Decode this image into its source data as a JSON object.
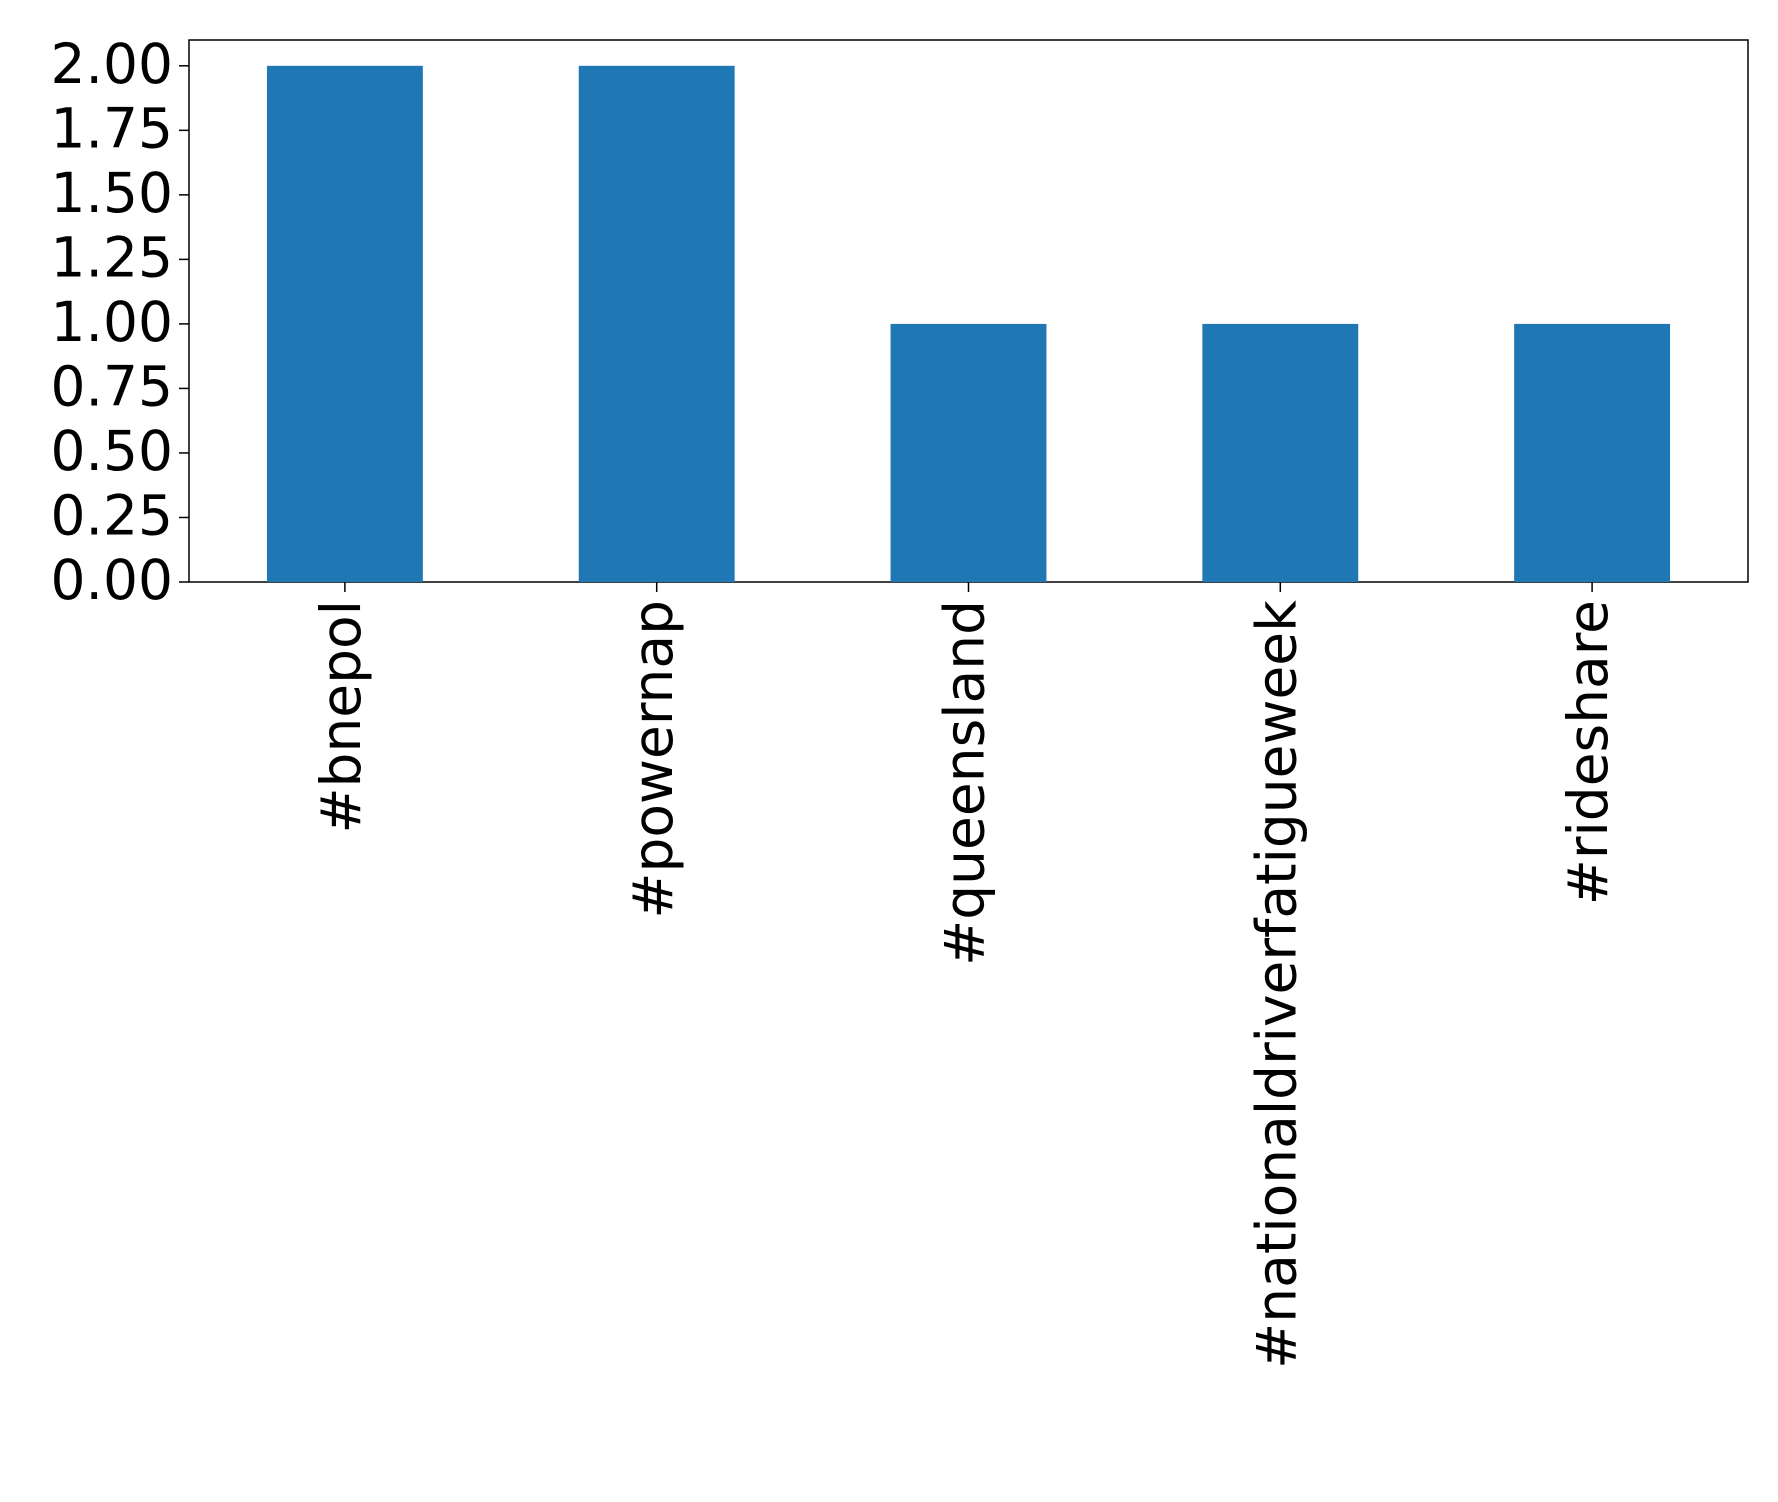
{
  "chart_data": {
    "type": "bar",
    "categories": [
      "#bnepol",
      "#powernap",
      "#queensland",
      "#nationaldriverfatigueweek",
      "#rideshare"
    ],
    "values": [
      2,
      2,
      1,
      1,
      1
    ],
    "color": "#1f77b4",
    "ylim": [
      0,
      2.1
    ],
    "yticks": [
      {
        "value": 0,
        "label": "0.00"
      },
      {
        "value": 0.25,
        "label": "0.25"
      },
      {
        "value": 0.5,
        "label": "0.50"
      },
      {
        "value": 0.75,
        "label": "0.75"
      },
      {
        "value": 1,
        "label": "1.00"
      },
      {
        "value": 1.25,
        "label": "1.25"
      },
      {
        "value": 1.5,
        "label": "1.50"
      },
      {
        "value": 1.75,
        "label": "1.75"
      },
      {
        "value": 2,
        "label": "2.00"
      }
    ],
    "grid": false
  }
}
